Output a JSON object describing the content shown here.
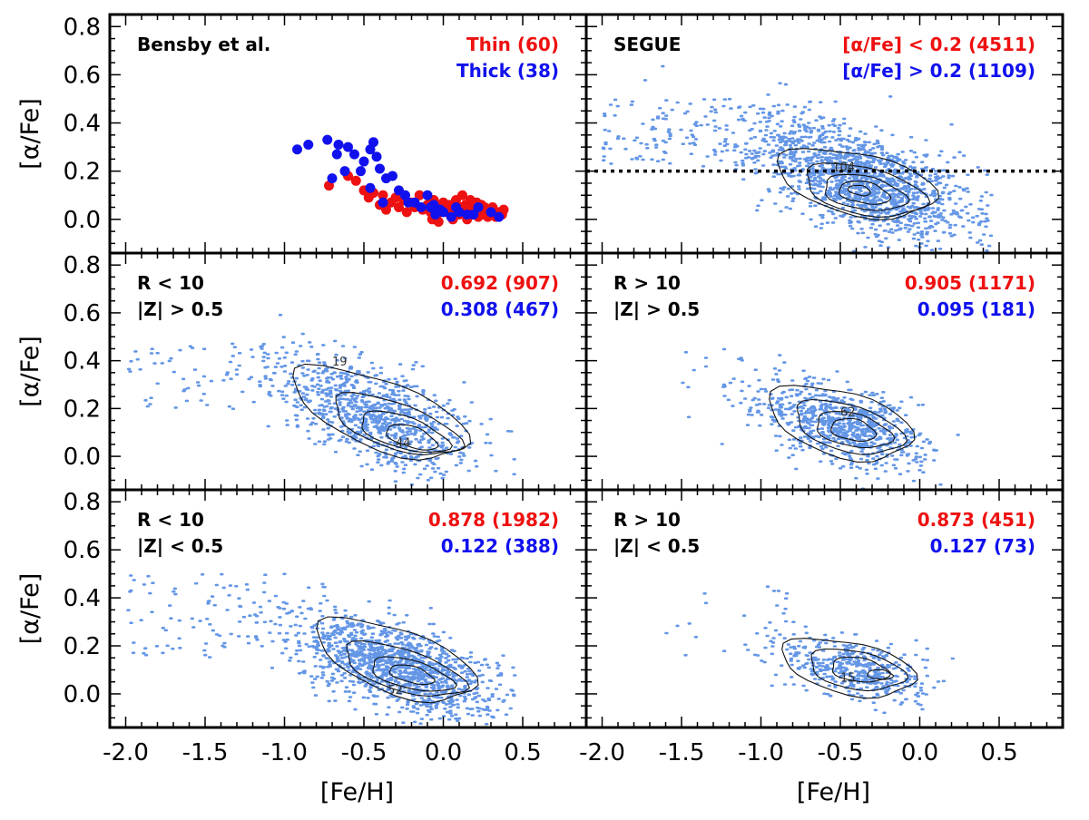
{
  "colors": {
    "thin": "#ee1111",
    "thick": "#1111ee",
    "scatter": "#6496e6",
    "contour": "#111111",
    "frame": "#000000"
  },
  "chart_data": [
    {
      "id": "p1",
      "type": "scatter",
      "xlabel": "",
      "ylabel": "[α/Fe]",
      "xlim": [
        -2.1,
        0.9
      ],
      "ylim": [
        -0.14,
        0.85
      ],
      "xticks": [
        "-2.0",
        "-1.5",
        "-1.0",
        "-0.5",
        "0.0",
        "0.5"
      ],
      "yticks": [
        "0.0",
        "0.2",
        "0.4",
        "0.6",
        "0.8"
      ],
      "annotations": [
        {
          "text": "Bensby et al.",
          "color": "#000000",
          "align": "left"
        },
        {
          "text": "Thin (60)",
          "color": "#ee1111",
          "align": "right"
        },
        {
          "text": "Thick (38)",
          "color": "#1111ee",
          "align": "right"
        }
      ],
      "series": [
        {
          "name": "Thin (60)",
          "color": "#ee1111",
          "points": [
            [
              -0.72,
              0.14
            ],
            [
              -0.6,
              0.18
            ],
            [
              -0.55,
              0.16
            ],
            [
              -0.5,
              0.12
            ],
            [
              -0.47,
              0.09
            ],
            [
              -0.44,
              0.11
            ],
            [
              -0.4,
              0.06
            ],
            [
              -0.38,
              0.1
            ],
            [
              -0.36,
              0.04
            ],
            [
              -0.33,
              0.07
            ],
            [
              -0.3,
              0.09
            ],
            [
              -0.28,
              0.05
            ],
            [
              -0.25,
              0.08
            ],
            [
              -0.23,
              0.03
            ],
            [
              -0.2,
              0.07
            ],
            [
              -0.18,
              0.05
            ],
            [
              -0.15,
              0.1
            ],
            [
              -0.13,
              0.04
            ],
            [
              -0.1,
              0.06
            ],
            [
              -0.08,
              0.03
            ],
            [
              -0.06,
              0.08
            ],
            [
              -0.04,
              0.02
            ],
            [
              -0.02,
              0.05
            ],
            [
              0.0,
              0.07
            ],
            [
              0.02,
              0.03
            ],
            [
              0.04,
              0.06
            ],
            [
              0.05,
              0.01
            ],
            [
              0.07,
              0.04
            ],
            [
              0.08,
              0.08
            ],
            [
              0.1,
              0.02
            ],
            [
              0.11,
              0.05
            ],
            [
              0.12,
              0.1
            ],
            [
              0.13,
              0.03
            ],
            [
              0.14,
              0.06
            ],
            [
              0.15,
              0.0
            ],
            [
              0.16,
              0.04
            ],
            [
              0.17,
              0.08
            ],
            [
              0.18,
              0.02
            ],
            [
              0.19,
              0.05
            ],
            [
              0.2,
              0.03
            ],
            [
              0.21,
              0.07
            ],
            [
              0.22,
              0.01
            ],
            [
              0.23,
              0.04
            ],
            [
              0.24,
              0.06
            ],
            [
              0.25,
              0.02
            ],
            [
              0.26,
              0.05
            ],
            [
              0.27,
              0.03
            ],
            [
              0.28,
              0.01
            ],
            [
              0.29,
              0.04
            ],
            [
              0.3,
              0.02
            ],
            [
              0.31,
              0.05
            ],
            [
              0.32,
              0.03
            ],
            [
              0.33,
              0.01
            ],
            [
              0.35,
              0.03
            ],
            [
              0.37,
              0.02
            ],
            [
              0.38,
              0.04
            ],
            [
              -0.07,
              0.0
            ],
            [
              -0.03,
              -0.01
            ],
            [
              0.06,
              0.0
            ],
            [
              0.2,
              0.06
            ]
          ]
        },
        {
          "name": "Thick (38)",
          "color": "#1111ee",
          "points": [
            [
              -0.92,
              0.29
            ],
            [
              -0.85,
              0.31
            ],
            [
              -0.73,
              0.33
            ],
            [
              -0.66,
              0.31
            ],
            [
              -0.6,
              0.3
            ],
            [
              -0.56,
              0.27
            ],
            [
              -0.52,
              0.2
            ],
            [
              -0.5,
              0.24
            ],
            [
              -0.46,
              0.29
            ],
            [
              -0.44,
              0.32
            ],
            [
              -0.42,
              0.26
            ],
            [
              -0.4,
              0.21
            ],
            [
              -0.36,
              0.17
            ],
            [
              -0.32,
              0.18
            ],
            [
              -0.28,
              0.12
            ],
            [
              -0.24,
              0.1
            ],
            [
              -0.22,
              0.07
            ],
            [
              -0.18,
              0.07
            ],
            [
              -0.14,
              0.05
            ],
            [
              -0.1,
              0.1
            ],
            [
              -0.08,
              0.05
            ],
            [
              -0.05,
              0.02
            ],
            [
              -0.02,
              0.04
            ],
            [
              0.0,
              0.03
            ],
            [
              0.05,
              0.01
            ],
            [
              0.08,
              0.05
            ],
            [
              0.1,
              0.03
            ],
            [
              0.15,
              0.02
            ],
            [
              0.22,
              0.05
            ],
            [
              0.3,
              0.03
            ],
            [
              -0.62,
              0.2
            ],
            [
              -0.67,
              0.27
            ],
            [
              -0.46,
              0.13
            ],
            [
              -0.38,
              0.07
            ],
            [
              -0.06,
              0.06
            ],
            [
              0.19,
              0.02
            ],
            [
              0.35,
              0.01
            ],
            [
              -0.7,
              0.17
            ]
          ]
        }
      ]
    },
    {
      "id": "p2",
      "type": "scatter",
      "xlabel": "",
      "ylabel": "",
      "xlim": [
        -2.1,
        0.9
      ],
      "ylim": [
        -0.14,
        0.85
      ],
      "xticks": [],
      "yticks": [],
      "annotations": [
        {
          "text": "SEGUE",
          "color": "#000000",
          "align": "left"
        },
        {
          "text": "[α/Fe] < 0.2 (4511)",
          "color": "#ee1111",
          "align": "right"
        },
        {
          "text": "[α/Fe] > 0.2 (1109)",
          "color": "#1111ee",
          "align": "right"
        }
      ],
      "reference_line": {
        "y": 0.2,
        "style": "dotted"
      },
      "cloud": {
        "center": [
          -0.35,
          0.16
        ],
        "spread": [
          0.33,
          0.1
        ],
        "tilt": -0.2,
        "n": 1500,
        "tail_n": 180,
        "tail_xlim": [
          -2.0,
          -0.6
        ],
        "tail_y": [
          0.22,
          0.5
        ],
        "xmax": 0.45
      },
      "contours": [
        {
          "center": [
            -0.4,
            0.15
          ],
          "rx": 0.5,
          "ry": 0.13,
          "tilt": -0.12
        },
        {
          "center": [
            -0.35,
            0.12
          ],
          "rx": 0.38,
          "ry": 0.1,
          "tilt": -0.12
        },
        {
          "center": [
            -0.35,
            0.11
          ],
          "rx": 0.26,
          "ry": 0.07,
          "tilt": -0.1
        },
        {
          "center": [
            -0.35,
            0.11
          ],
          "rx": 0.16,
          "ry": 0.045,
          "tilt": -0.1
        },
        {
          "center": [
            -0.38,
            0.12
          ],
          "rx": 0.07,
          "ry": 0.02,
          "tilt": -0.1
        }
      ],
      "contour_label": {
        "text": "104",
        "x": -0.55,
        "y": 0.2
      }
    },
    {
      "id": "p3",
      "type": "scatter",
      "xlabel": "",
      "ylabel": "[α/Fe]",
      "xlim": [
        -2.1,
        0.9
      ],
      "ylim": [
        -0.14,
        0.85
      ],
      "xticks": [],
      "yticks": [
        "0.0",
        "0.2",
        "0.4",
        "0.6",
        "0.8"
      ],
      "annotations": [
        {
          "text": "R < 10",
          "color": "#000000",
          "align": "left"
        },
        {
          "text": "|Z| > 0.5",
          "color": "#000000",
          "align": "left"
        },
        {
          "text": "0.692 (907)",
          "color": "#ee1111",
          "align": "right"
        },
        {
          "text": "0.308 (467)",
          "color": "#1111ee",
          "align": "right"
        }
      ],
      "cloud": {
        "center": [
          -0.42,
          0.17
        ],
        "spread": [
          0.3,
          0.1
        ],
        "tilt": -0.22,
        "n": 900,
        "tail_n": 90,
        "tail_xlim": [
          -2.0,
          -0.7
        ],
        "tail_y": [
          0.2,
          0.48
        ],
        "xmax": 0.45
      },
      "contours": [
        {
          "center": [
            -0.4,
            0.18
          ],
          "rx": 0.55,
          "ry": 0.15,
          "tilt": -0.22
        },
        {
          "center": [
            -0.3,
            0.13
          ],
          "rx": 0.4,
          "ry": 0.1,
          "tilt": -0.2
        },
        {
          "center": [
            -0.25,
            0.1
          ],
          "rx": 0.28,
          "ry": 0.07,
          "tilt": -0.18
        },
        {
          "center": [
            -0.2,
            0.08
          ],
          "rx": 0.16,
          "ry": 0.045,
          "tilt": -0.18
        }
      ],
      "contour_labels": [
        {
          "text": "19",
          "x": -0.7,
          "y": 0.38
        },
        {
          "text": "44",
          "x": -0.3,
          "y": 0.04
        }
      ]
    },
    {
      "id": "p4",
      "type": "scatter",
      "xlabel": "",
      "ylabel": "",
      "xlim": [
        -2.1,
        0.9
      ],
      "ylim": [
        -0.14,
        0.85
      ],
      "xticks": [],
      "yticks": [],
      "annotations": [
        {
          "text": "R > 10",
          "color": "#000000",
          "align": "left"
        },
        {
          "text": "|Z| > 0.5",
          "color": "#000000",
          "align": "left"
        },
        {
          "text": "0.905 (1171)",
          "color": "#ee1111",
          "align": "right"
        },
        {
          "text": "0.095 (181)",
          "color": "#1111ee",
          "align": "right"
        }
      ],
      "cloud": {
        "center": [
          -0.48,
          0.13
        ],
        "spread": [
          0.25,
          0.075
        ],
        "tilt": -0.15,
        "n": 800,
        "tail_n": 35,
        "tail_xlim": [
          -1.5,
          -0.7
        ],
        "tail_y": [
          0.15,
          0.45
        ],
        "xmax": 0.4
      },
      "contours": [
        {
          "center": [
            -0.5,
            0.14
          ],
          "rx": 0.45,
          "ry": 0.14,
          "tilt": -0.15
        },
        {
          "center": [
            -0.45,
            0.12
          ],
          "rx": 0.34,
          "ry": 0.1,
          "tilt": -0.15
        },
        {
          "center": [
            -0.42,
            0.11
          ],
          "rx": 0.24,
          "ry": 0.07,
          "tilt": -0.12
        },
        {
          "center": [
            -0.42,
            0.11
          ],
          "rx": 0.14,
          "ry": 0.045,
          "tilt": -0.1
        }
      ],
      "contour_labels": [
        {
          "text": "62",
          "x": -0.5,
          "y": 0.17
        }
      ]
    },
    {
      "id": "p5",
      "type": "scatter",
      "xlabel": "[Fe/H]",
      "ylabel": "[α/Fe]",
      "xlim": [
        -2.1,
        0.9
      ],
      "ylim": [
        -0.14,
        0.85
      ],
      "xticks": [
        "-2.0",
        "-1.5",
        "-1.0",
        "-0.5",
        "0.0",
        "0.5"
      ],
      "yticks": [
        "0.0",
        "0.2",
        "0.4",
        "0.6",
        "0.8"
      ],
      "annotations": [
        {
          "text": "R < 10",
          "color": "#000000",
          "align": "left"
        },
        {
          "text": "|Z| < 0.5",
          "color": "#000000",
          "align": "left"
        },
        {
          "text": "0.878 (1982)",
          "color": "#ee1111",
          "align": "right"
        },
        {
          "text": "0.122 (388)",
          "color": "#1111ee",
          "align": "right"
        }
      ],
      "cloud": {
        "center": [
          -0.3,
          0.12
        ],
        "spread": [
          0.3,
          0.085
        ],
        "tilt": -0.2,
        "n": 1300,
        "tail_n": 110,
        "tail_xlim": [
          -2.0,
          -0.7
        ],
        "tail_y": [
          0.15,
          0.5
        ],
        "xmax": 0.45
      },
      "contours": [
        {
          "center": [
            -0.3,
            0.14
          ],
          "rx": 0.5,
          "ry": 0.14,
          "tilt": -0.2
        },
        {
          "center": [
            -0.25,
            0.1
          ],
          "rx": 0.38,
          "ry": 0.09,
          "tilt": -0.18
        },
        {
          "center": [
            -0.2,
            0.08
          ],
          "rx": 0.26,
          "ry": 0.06,
          "tilt": -0.15
        },
        {
          "center": [
            -0.2,
            0.08
          ],
          "rx": 0.14,
          "ry": 0.035,
          "tilt": -0.15
        }
      ],
      "contour_labels": [
        {
          "text": "52",
          "x": -0.35,
          "y": 0.0
        }
      ]
    },
    {
      "id": "p6",
      "type": "scatter",
      "xlabel": "[Fe/H]",
      "ylabel": "",
      "xlim": [
        -2.1,
        0.9
      ],
      "ylim": [
        -0.14,
        0.85
      ],
      "xticks": [
        "-2.0",
        "-1.5",
        "-1.0",
        "-0.5",
        "0.0",
        "0.5"
      ],
      "yticks": [],
      "annotations": [
        {
          "text": "R > 10",
          "color": "#000000",
          "align": "left"
        },
        {
          "text": "|Z| < 0.5",
          "color": "#000000",
          "align": "left"
        },
        {
          "text": "0.873 (451)",
          "color": "#ee1111",
          "align": "right"
        },
        {
          "text": "0.127 (73)",
          "color": "#1111ee",
          "align": "right"
        }
      ],
      "cloud": {
        "center": [
          -0.4,
          0.1
        ],
        "spread": [
          0.22,
          0.065
        ],
        "tilt": -0.12,
        "n": 450,
        "tail_n": 25,
        "tail_xlim": [
          -1.6,
          -0.8
        ],
        "tail_y": [
          0.12,
          0.45
        ],
        "xmax": 0.3
      },
      "contours": [
        {
          "center": [
            -0.45,
            0.11
          ],
          "rx": 0.42,
          "ry": 0.11,
          "tilt": -0.12
        },
        {
          "center": [
            -0.4,
            0.1
          ],
          "rx": 0.3,
          "ry": 0.08,
          "tilt": -0.1
        },
        {
          "center": [
            -0.38,
            0.1
          ],
          "rx": 0.18,
          "ry": 0.05,
          "tilt": -0.08
        },
        {
          "center": [
            -0.25,
            0.08
          ],
          "rx": 0.08,
          "ry": 0.02,
          "tilt": -0.05
        }
      ],
      "contour_labels": [
        {
          "text": "15",
          "x": -0.5,
          "y": 0.05
        }
      ]
    }
  ]
}
